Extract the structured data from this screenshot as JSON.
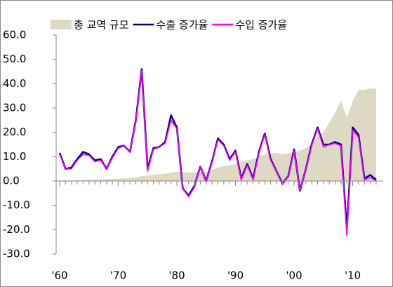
{
  "chart_data": {
    "type": "line",
    "x": [
      1960,
      1961,
      1962,
      1963,
      1964,
      1965,
      1966,
      1967,
      1968,
      1969,
      1970,
      1971,
      1972,
      1973,
      1974,
      1975,
      1976,
      1977,
      1978,
      1979,
      1980,
      1981,
      1982,
      1983,
      1984,
      1985,
      1986,
      1987,
      1988,
      1989,
      1990,
      1991,
      1992,
      1993,
      1994,
      1995,
      1996,
      1997,
      1998,
      1999,
      2000,
      2001,
      2002,
      2003,
      2004,
      2005,
      2006,
      2007,
      2008,
      2009,
      2010,
      2011,
      2012,
      2013,
      2014
    ],
    "series": [
      {
        "name": "총 교역 규모",
        "kind": "area",
        "color": "#ddd9c3",
        "values": [
          0.3,
          0.3,
          0.3,
          0.4,
          0.4,
          0.5,
          0.6,
          0.7,
          0.8,
          0.9,
          1,
          1.1,
          1.3,
          1.6,
          2,
          2.2,
          2.5,
          2.8,
          3,
          3.5,
          3.8,
          3.6,
          3.5,
          3.5,
          3.6,
          3.6,
          4.5,
          5.5,
          6.2,
          6.5,
          7,
          8,
          8.5,
          9,
          10,
          11,
          11.5,
          11.5,
          11,
          11.5,
          12,
          12.5,
          13.5,
          15,
          18,
          20,
          24,
          28,
          33,
          26,
          33,
          37.5,
          37.5,
          38,
          38
        ]
      },
      {
        "name": "수출 증가율",
        "kind": "line",
        "color": "#00008b",
        "values": [
          11.5,
          5,
          5.5,
          9,
          12,
          11,
          8.5,
          9,
          5,
          10,
          14,
          14.5,
          12,
          25,
          46,
          5,
          13.5,
          14,
          16,
          27,
          22,
          -3,
          -6,
          -2,
          6,
          0,
          8,
          17.5,
          15,
          9,
          12.5,
          1,
          7,
          1,
          12,
          19.5,
          9,
          4,
          -1,
          2,
          13,
          -4,
          5,
          15,
          22,
          15,
          15,
          16,
          15,
          -20,
          22,
          19,
          1,
          2.5,
          0.5
        ]
      },
      {
        "name": "수입 증가율",
        "kind": "line",
        "color": "#ff00ff",
        "values": [
          11,
          5,
          5,
          8.5,
          11,
          10.5,
          8,
          8.5,
          5,
          9.5,
          13.5,
          14.5,
          12,
          24.5,
          45.5,
          4,
          13,
          14,
          15.5,
          25,
          21.5,
          -3,
          -6.5,
          -2.5,
          6,
          0,
          7.5,
          17,
          14.5,
          8.5,
          12,
          0.5,
          6.5,
          0.5,
          11.5,
          19,
          8.5,
          4,
          -1.5,
          2,
          12.5,
          -4,
          5,
          14.5,
          21.5,
          14,
          15,
          15.5,
          14.5,
          -22.5,
          21,
          18,
          0.5,
          1.5,
          0
        ]
      }
    ],
    "xlim": [
      1959.4,
      2015.2
    ],
    "xticks": [
      {
        "value": 1960,
        "label": "'60"
      },
      {
        "value": 1970,
        "label": "'70"
      },
      {
        "value": 1980,
        "label": "'80"
      },
      {
        "value": 1990,
        "label": "'90"
      },
      {
        "value": 2000,
        "label": "'00"
      },
      {
        "value": 2010,
        "label": "'10"
      }
    ],
    "ylim": [
      -30,
      60
    ],
    "yticks": [
      {
        "value": -30,
        "label": "-30.0"
      },
      {
        "value": -20,
        "label": "-20.0"
      },
      {
        "value": -10,
        "label": "-10.0"
      },
      {
        "value": 0,
        "label": "0.0"
      },
      {
        "value": 10,
        "label": "10.0"
      },
      {
        "value": 20,
        "label": "20.0"
      },
      {
        "value": 30,
        "label": "30.0"
      },
      {
        "value": 40,
        "label": "40.0"
      },
      {
        "value": 50,
        "label": "50.0"
      },
      {
        "value": 60,
        "label": "60.0"
      }
    ],
    "legend": "top"
  }
}
